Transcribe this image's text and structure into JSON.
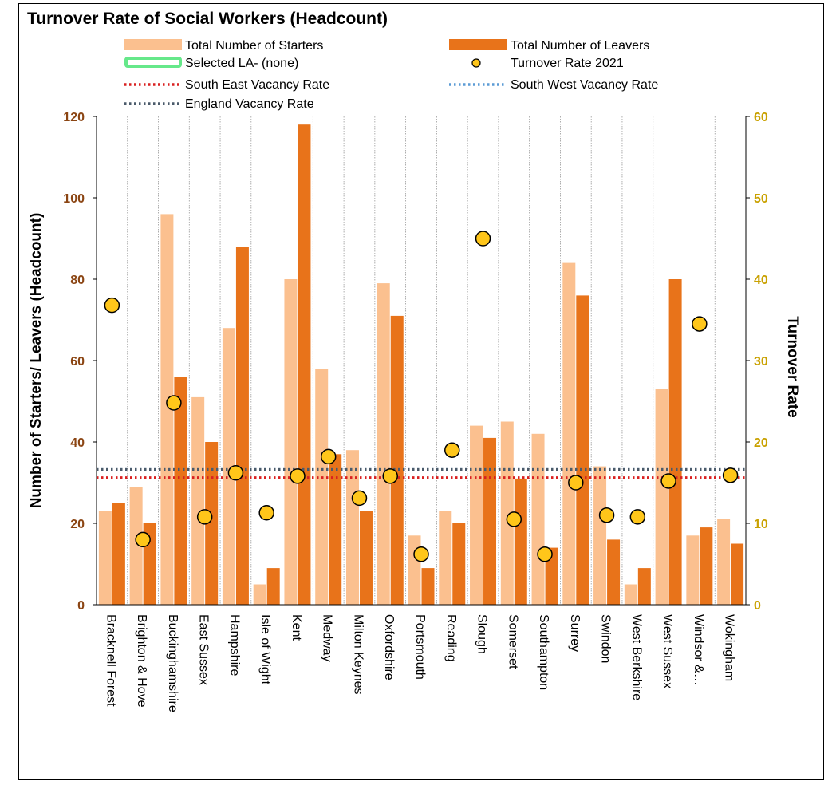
{
  "chart_data": {
    "type": "bar",
    "title": "Turnover Rate of Social Workers (Headcount)",
    "ylabel": "Number of Starters/ Leavers (Headcount)",
    "y2label": "Turnover Rate",
    "ylim": [
      0,
      120
    ],
    "y2lim": [
      0,
      60
    ],
    "yticks": [
      "0",
      "20",
      "40",
      "60",
      "80",
      "100",
      "120"
    ],
    "y2ticks": [
      "0",
      "10",
      "20",
      "30",
      "40",
      "50",
      "60"
    ],
    "grid": "vertical",
    "legend_position": "top",
    "categories": [
      "Bracknell Forest",
      "Brighton & Hove",
      "Buckinghamshire",
      "East Sussex",
      "Hampshire",
      "Isle of Wight",
      "Kent",
      "Medway",
      "Milton Keynes",
      "Oxfordshire",
      "Portsmouth",
      "Reading",
      "Slough",
      "Somerset",
      "Southampton",
      "Surrey",
      "Swindon",
      "West Berkshire",
      "West Sussex",
      "Windsor &…",
      "Wokingham"
    ],
    "series": [
      {
        "name": "Total Number of Starters",
        "kind": "bar",
        "axis": "left",
        "color": "#FBC08F",
        "values": [
          23,
          29,
          96,
          51,
          68,
          5,
          80,
          58,
          38,
          79,
          17,
          23,
          44,
          45,
          42,
          84,
          34,
          5,
          53,
          17,
          21
        ]
      },
      {
        "name": "Total Number of Leavers",
        "kind": "bar",
        "axis": "left",
        "color": "#E8731A",
        "values": [
          25,
          20,
          56,
          40,
          88,
          9,
          118,
          37,
          23,
          71,
          9,
          20,
          41,
          31,
          14,
          76,
          16,
          9,
          80,
          19,
          15
        ]
      },
      {
        "name": "Turnover  Rate 2021",
        "kind": "scatter",
        "axis": "right",
        "color": "#FFC61A",
        "values": [
          36.8,
          8.0,
          24.8,
          10.8,
          16.2,
          11.3,
          15.8,
          18.2,
          13.1,
          15.8,
          6.2,
          19.0,
          45.0,
          10.5,
          6.2,
          15.0,
          11.0,
          10.8,
          15.2,
          34.5,
          15.9
        ]
      },
      {
        "name": "South East Vacancy Rate",
        "kind": "hline",
        "axis": "right",
        "color": "#D92020",
        "value": 15.6
      },
      {
        "name": "South West Vacancy Rate",
        "kind": "hline",
        "axis": "right",
        "color": "#5B9BD5",
        "value": 16.6
      },
      {
        "name": "England Vacancy Rate",
        "kind": "hline",
        "axis": "right",
        "color": "#4A5A6A",
        "value": 16.6
      }
    ],
    "legend": {
      "starters": "Total Number of Starters",
      "leavers": "Total Number of Leavers",
      "selected": "Selected LA- (none)",
      "turnover": "Turnover  Rate 2021",
      "south_east": "South East Vacancy Rate",
      "south_west": "South West Vacancy Rate",
      "england": "England Vacancy Rate"
    },
    "colors": {
      "selected_outline": "#66E88A",
      "left_ticks": "#8B4513",
      "right_ticks": "#C9A100"
    }
  }
}
